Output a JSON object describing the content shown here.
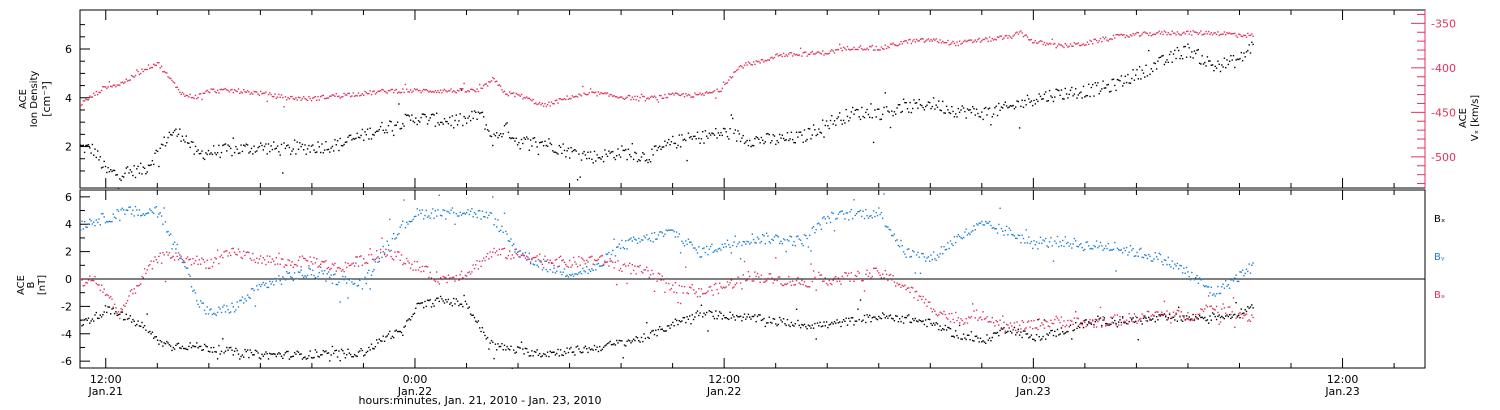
{
  "colors": {
    "density": "#000000",
    "velocity": "#e0335c",
    "bx": "#000000",
    "by": "#1e7fd8",
    "bz": "#e0335c",
    "axis": "#000000"
  },
  "x_axis": {
    "title": "hours:minutes, Jan. 21, 2010 - Jan. 23, 2010",
    "ticks": [
      {
        "hour": 12,
        "time": "12:00",
        "date": "Jan.21"
      },
      {
        "hour": 24,
        "time": "0:00",
        "date": "Jan.22"
      },
      {
        "hour": 36,
        "time": "12:00",
        "date": "Jan.22"
      },
      {
        "hour": 48,
        "time": "0:00",
        "date": "Jan.23"
      },
      {
        "hour": 60,
        "time": "12:00",
        "date": "Jan.23"
      }
    ],
    "range_hours": [
      11.0,
      63.2
    ]
  },
  "top_panel": {
    "left_label_lines": [
      "ACE",
      "Ion Density"
    ],
    "left_unit": "[cm⁻³]",
    "right_label_lines": [
      "ACE",
      "Vₓ [km/s]"
    ],
    "left_ticks": [
      "2",
      "4",
      "6"
    ],
    "right_ticks": [
      "-350",
      "-400",
      "-450",
      "-500"
    ]
  },
  "bottom_panel": {
    "left_label_lines": [
      "ACE",
      "B",
      "[nT]"
    ],
    "left_ticks": [
      "-6",
      "-4",
      "-2",
      "0",
      "2",
      "4",
      "6"
    ],
    "legend": [
      {
        "label": "Bₓ",
        "color_key": "bx"
      },
      {
        "label": "Bᵧ",
        "color_key": "by"
      },
      {
        "label": "Bₔ",
        "color_key": "bz"
      }
    ]
  },
  "chart_data": [
    {
      "type": "scatter",
      "title": "",
      "xlabel": "hours:minutes, Jan. 21, 2010 - Jan. 23, 2010",
      "x_unit": "hours since 2010-01-21 00:00",
      "ylabel": "ACE Ion Density [cm⁻³]",
      "ylim": [
        0.3,
        7.6
      ],
      "y2label": "ACE Vx [km/s]",
      "y2lim": [
        -535,
        -335
      ],
      "series": [
        {
          "name": "Ion Density",
          "axis": "left",
          "x": [
            11.0,
            11.5,
            12.0,
            12.5,
            13.0,
            13.5,
            14.0,
            14.5,
            15.0,
            15.5,
            16.0,
            17.0,
            18.0,
            19.0,
            20.0,
            21.0,
            22.0,
            23.0,
            24.0,
            25.0,
            26.0,
            26.5,
            27.0,
            27.5,
            28.0,
            29.0,
            30.0,
            31.0,
            32.0,
            33.0,
            34.0,
            35.0,
            36.0,
            37.0,
            38.0,
            39.0,
            40.0,
            41.0,
            42.0,
            43.0,
            44.0,
            45.0,
            46.0,
            47.0,
            48.0,
            49.0,
            50.0,
            51.0,
            52.0,
            53.0,
            54.0,
            55.0,
            56.0,
            56.5
          ],
          "values": [
            2.0,
            1.9,
            1.0,
            0.9,
            1.0,
            1.1,
            1.8,
            2.6,
            2.5,
            1.7,
            1.8,
            1.9,
            2.0,
            1.9,
            2.0,
            2.1,
            2.5,
            2.9,
            3.2,
            3.1,
            3.1,
            3.4,
            2.3,
            2.8,
            2.2,
            2.2,
            1.8,
            1.6,
            1.8,
            1.6,
            2.2,
            2.4,
            2.6,
            2.3,
            2.3,
            2.4,
            3.0,
            3.4,
            3.4,
            3.6,
            3.8,
            3.5,
            3.4,
            3.6,
            4.0,
            4.2,
            4.3,
            4.5,
            5.0,
            5.5,
            6.0,
            5.3,
            5.6,
            6.2
          ]
        },
        {
          "name": "Vx",
          "axis": "right",
          "x": [
            11.0,
            11.5,
            12.0,
            12.5,
            13.0,
            13.5,
            14.0,
            14.5,
            15.0,
            15.5,
            16.0,
            17.0,
            18.0,
            19.0,
            20.0,
            21.0,
            22.0,
            23.0,
            24.0,
            25.0,
            26.0,
            26.5,
            27.0,
            27.5,
            28.0,
            29.0,
            30.0,
            31.0,
            32.0,
            33.0,
            34.0,
            35.0,
            35.8,
            36.2,
            36.6,
            37.0,
            37.5,
            38.0,
            39.0,
            40.0,
            41.0,
            42.0,
            43.0,
            44.0,
            45.0,
            46.0,
            47.0,
            47.5,
            48.0,
            49.0,
            50.0,
            51.0,
            52.0,
            53.0,
            54.0,
            55.0,
            56.0,
            56.5
          ],
          "values": [
            -440,
            -430,
            -420,
            -418,
            -410,
            -400,
            -394,
            -413,
            -430,
            -432,
            -425,
            -425,
            -428,
            -433,
            -434,
            -430,
            -428,
            -425,
            -425,
            -425,
            -425,
            -425,
            -412,
            -428,
            -430,
            -442,
            -432,
            -428,
            -432,
            -434,
            -430,
            -430,
            -425,
            -410,
            -398,
            -394,
            -392,
            -385,
            -384,
            -382,
            -376,
            -378,
            -370,
            -368,
            -372,
            -368,
            -365,
            -360,
            -370,
            -375,
            -372,
            -365,
            -362,
            -360,
            -360,
            -360,
            -362,
            -363
          ]
        }
      ]
    },
    {
      "type": "scatter",
      "title": "",
      "xlabel": "hours:minutes, Jan. 21, 2010 - Jan. 23, 2010",
      "x_unit": "hours since 2010-01-21 00:00",
      "ylabel": "ACE B [nT]",
      "ylim": [
        -6.5,
        6.5
      ],
      "series": [
        {
          "name": "Bx",
          "x": [
            11.0,
            11.5,
            12.0,
            12.5,
            13.0,
            13.5,
            14.0,
            14.5,
            15.0,
            16.0,
            17.0,
            18.0,
            19.0,
            20.0,
            21.0,
            22.0,
            23.0,
            23.5,
            24.0,
            25.0,
            26.0,
            26.5,
            27.0,
            28.0,
            29.0,
            30.0,
            31.0,
            32.0,
            33.0,
            34.0,
            35.0,
            36.0,
            37.0,
            38.0,
            39.0,
            40.0,
            41.0,
            42.0,
            43.0,
            44.0,
            45.0,
            46.0,
            47.0,
            48.0,
            49.0,
            50.0,
            51.0,
            52.0,
            53.0,
            54.0,
            55.0,
            56.0,
            56.5
          ],
          "values": [
            -3.2,
            -2.8,
            -2.2,
            -2.5,
            -3.0,
            -3.5,
            -4.5,
            -4.8,
            -4.8,
            -5.0,
            -5.3,
            -5.5,
            -5.5,
            -5.5,
            -5.4,
            -5.3,
            -4.0,
            -3.9,
            -2.0,
            -1.5,
            -1.8,
            -3.5,
            -4.8,
            -5.2,
            -5.4,
            -5.2,
            -5.0,
            -4.6,
            -4.2,
            -3.2,
            -2.5,
            -2.6,
            -2.8,
            -3.0,
            -3.3,
            -3.3,
            -3.0,
            -2.7,
            -2.8,
            -3.2,
            -4.0,
            -4.5,
            -3.5,
            -4.3,
            -3.8,
            -3.2,
            -3.0,
            -3.0,
            -2.8,
            -2.8,
            -2.7,
            -2.5,
            -1.8
          ]
        },
        {
          "name": "By",
          "x": [
            11.0,
            11.5,
            12.0,
            12.5,
            13.0,
            13.5,
            14.0,
            14.5,
            15.0,
            15.5,
            16.0,
            17.0,
            18.0,
            19.0,
            20.0,
            21.0,
            22.0,
            23.0,
            24.0,
            25.0,
            26.0,
            27.0,
            28.0,
            29.0,
            30.0,
            31.0,
            32.0,
            33.0,
            34.0,
            35.0,
            36.0,
            37.0,
            38.0,
            39.0,
            40.0,
            41.0,
            42.0,
            43.0,
            44.0,
            45.0,
            46.0,
            47.0,
            48.0,
            49.0,
            50.0,
            51.0,
            52.0,
            53.0,
            54.0,
            55.0,
            56.0,
            56.5
          ],
          "values": [
            4.0,
            4.3,
            4.5,
            4.8,
            5.0,
            4.8,
            5.2,
            3.0,
            1.5,
            -1.5,
            -2.5,
            -2.0,
            -0.5,
            0.2,
            0.5,
            0.0,
            -0.3,
            3.0,
            4.8,
            4.9,
            5.0,
            4.5,
            2.0,
            1.0,
            0.5,
            0.8,
            2.5,
            3.0,
            3.5,
            2.0,
            2.5,
            3.0,
            3.0,
            2.8,
            4.5,
            4.8,
            4.9,
            2.0,
            1.5,
            3.0,
            4.0,
            3.5,
            2.6,
            2.8,
            2.5,
            2.4,
            2.0,
            1.5,
            0.5,
            -1.0,
            0.3,
            1.0
          ]
        },
        {
          "name": "Bz",
          "x": [
            11.0,
            11.5,
            12.0,
            12.5,
            13.0,
            13.5,
            14.0,
            14.5,
            15.0,
            16.0,
            17.0,
            18.0,
            19.0,
            20.0,
            21.0,
            22.0,
            23.0,
            24.0,
            25.0,
            26.0,
            27.0,
            28.0,
            29.0,
            30.0,
            31.0,
            32.0,
            33.0,
            34.0,
            35.0,
            36.0,
            37.0,
            38.0,
            39.0,
            40.0,
            41.0,
            42.0,
            43.0,
            44.0,
            45.0,
            46.0,
            47.0,
            48.0,
            49.0,
            50.0,
            51.0,
            52.0,
            53.0,
            54.0,
            55.0,
            56.0,
            56.5
          ],
          "values": [
            -0.2,
            0.0,
            -1.0,
            -2.5,
            -1.0,
            0.5,
            1.5,
            1.8,
            1.5,
            1.2,
            2.0,
            1.5,
            1.2,
            1.4,
            0.8,
            1.5,
            2.0,
            1.0,
            0.0,
            0.5,
            2.0,
            1.8,
            1.5,
            1.2,
            1.5,
            1.0,
            0.5,
            -0.5,
            -1.0,
            -0.5,
            0.3,
            0.0,
            -0.2,
            0.0,
            0.2,
            0.5,
            -0.5,
            -2.0,
            -3.0,
            -2.5,
            -3.5,
            -3.3,
            -3.0,
            -3.2,
            -3.0,
            -2.8,
            -2.5,
            -2.7,
            -2.0,
            -2.5,
            -2.8
          ]
        }
      ]
    }
  ]
}
